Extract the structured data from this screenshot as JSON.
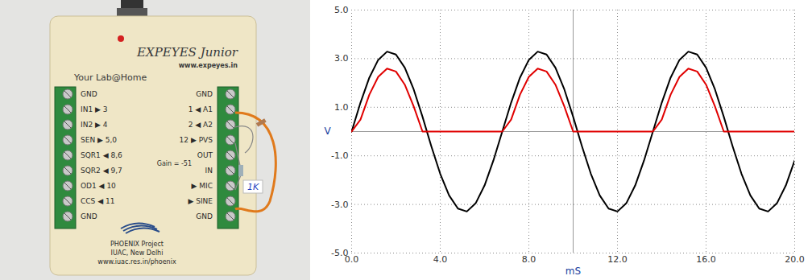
{
  "chart_data": {
    "type": "line",
    "x_label": "mS",
    "y_label": "V",
    "x": [
      0,
      0.4,
      0.8,
      1.2,
      1.6,
      2.0,
      2.4,
      2.8,
      3.2,
      3.6,
      4.0,
      4.4,
      4.8,
      5.2,
      5.6,
      6.0,
      6.4,
      6.8,
      7.2,
      7.6,
      8.0,
      8.4,
      8.8,
      9.2,
      9.6,
      10.0,
      10.4,
      10.8,
      11.2,
      11.6,
      12.0,
      12.4,
      12.8,
      13.2,
      13.6,
      14.0,
      14.4,
      14.8,
      15.2,
      15.6,
      16.0,
      16.4,
      16.8,
      17.2,
      17.6,
      18.0,
      18.4,
      18.8,
      19.2,
      19.6,
      20.0
    ],
    "series": [
      {
        "color": "#000000",
        "values": [
          0,
          1.19,
          2.22,
          2.95,
          3.29,
          3.17,
          2.63,
          1.74,
          0.61,
          -0.61,
          -1.74,
          -2.63,
          -3.17,
          -3.29,
          -2.95,
          -2.22,
          -1.19,
          0,
          1.19,
          2.22,
          2.95,
          3.29,
          3.17,
          2.63,
          1.74,
          0.61,
          -0.61,
          -1.74,
          -2.63,
          -3.17,
          -3.29,
          -2.95,
          -2.22,
          -1.19,
          0,
          1.19,
          2.22,
          2.95,
          3.29,
          3.17,
          2.63,
          1.74,
          0.61,
          -0.61,
          -1.74,
          -2.63,
          -3.17,
          -3.29,
          -2.95,
          -2.22,
          -1.19
        ]
      },
      {
        "color": "#e00000",
        "values": [
          0,
          0.49,
          1.52,
          2.25,
          2.59,
          2.47,
          1.93,
          1.04,
          0,
          0,
          0,
          0,
          0,
          0,
          0,
          0,
          0,
          0,
          0.49,
          1.52,
          2.25,
          2.59,
          2.47,
          1.93,
          1.04,
          0,
          0,
          0,
          0,
          0,
          0,
          0,
          0,
          0,
          0,
          0.49,
          1.52,
          2.25,
          2.59,
          2.47,
          1.93,
          1.04,
          0,
          0,
          0,
          0,
          0,
          0,
          0,
          0,
          0
        ]
      }
    ],
    "xlim": [
      0,
      20
    ],
    "ylim": [
      -5,
      5
    ],
    "xticks": [
      {
        "value": 0,
        "label": "0.0"
      },
      {
        "value": 4,
        "label": "4.0"
      },
      {
        "value": 8,
        "label": "8.0"
      },
      {
        "value": 12,
        "label": "12.0"
      },
      {
        "value": 16,
        "label": "16.0"
      },
      {
        "value": 20,
        "label": "20.0"
      }
    ],
    "yticks": [
      {
        "value": -5,
        "label": "-5.0"
      },
      {
        "value": -3,
        "label": "-3.0"
      },
      {
        "value": -1,
        "label": "-1.0"
      },
      {
        "value": 1,
        "label": "1.0"
      },
      {
        "value": 3,
        "label": "3.0"
      },
      {
        "value": 5,
        "label": "5.0"
      }
    ],
    "grid": true
  },
  "device": {
    "title": "EXPEYES Junior",
    "website": "www.expeyes.in",
    "tagline": "Your Lab@Home",
    "left_terminals": [
      "GND",
      "IN1 ▶ 3",
      "IN2 ▶ 4",
      "SEN ▶ 5,0",
      "SQR1 ◀ 8,6",
      "SQR2 ◀ 9,7",
      "OD1 ◀ 10",
      "CCS ◀ 11",
      "GND"
    ],
    "right_terminals": [
      "GND",
      "1 ◀ A1",
      "2 ◀ A2",
      "12 ▶ PVS",
      "OUT",
      "IN",
      "▶ MIC",
      "▶ SINE",
      "GND"
    ],
    "gain": "Gain = -51",
    "footer": [
      "PHOENIX Project",
      "IUAC, New Delhi",
      "www.iuac.res.in/phoenix"
    ],
    "resistor_tag": "1K"
  }
}
